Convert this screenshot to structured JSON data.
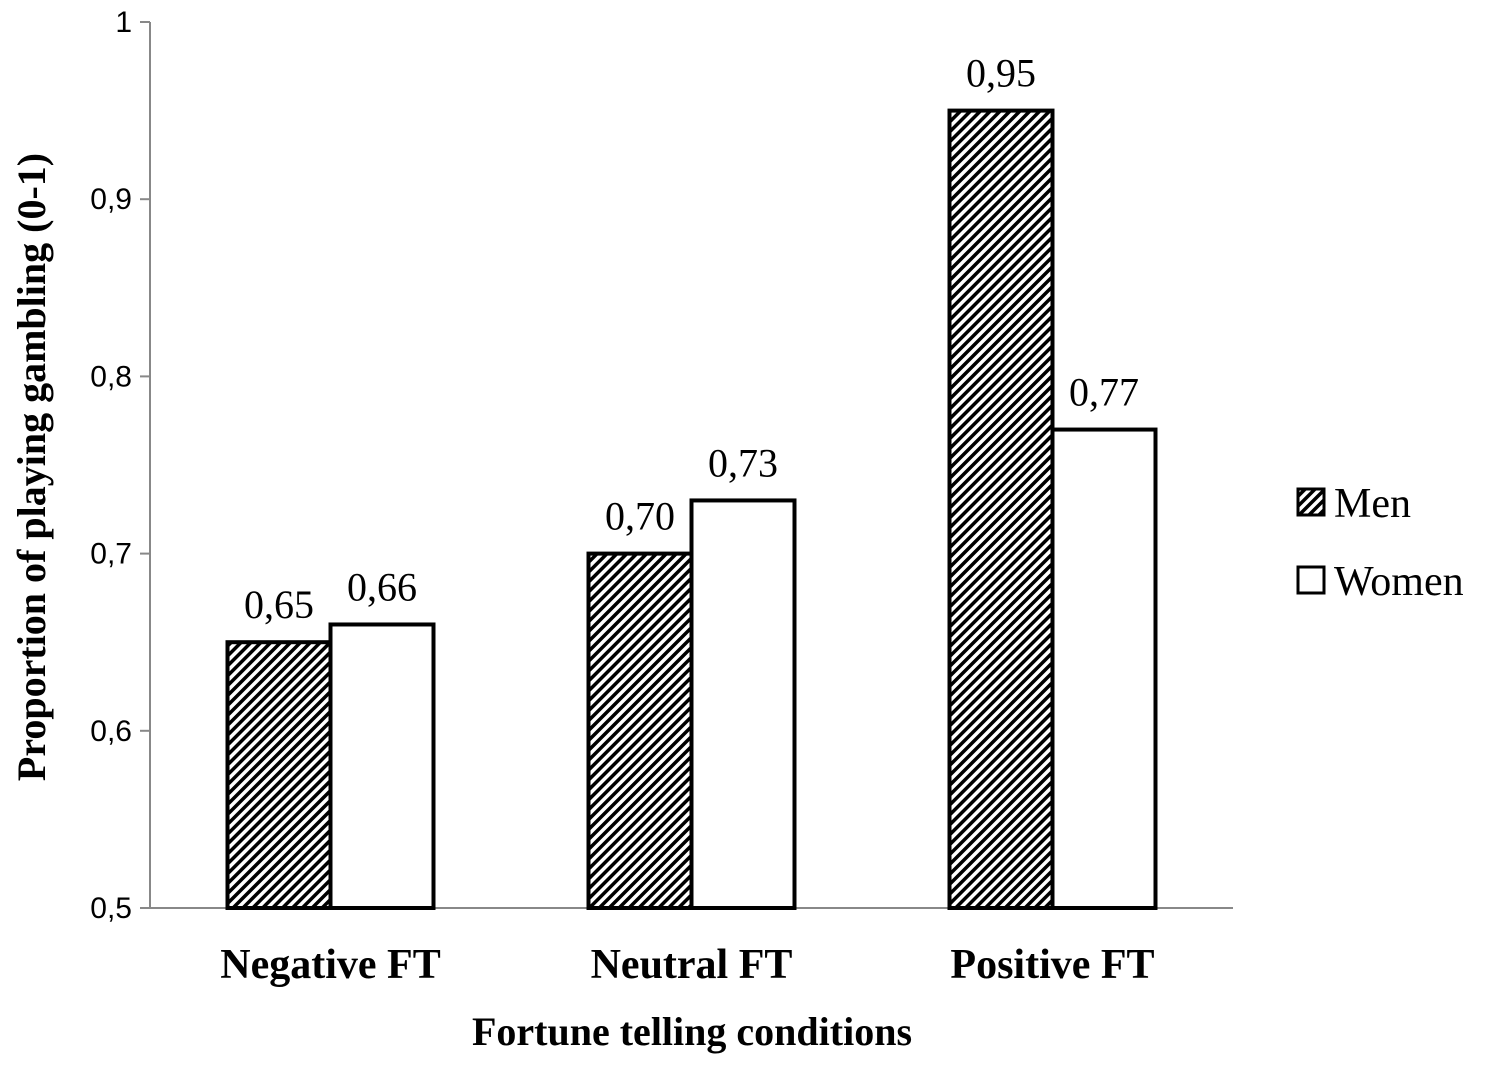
{
  "chart_data": {
    "type": "bar",
    "title": "",
    "categories": [
      "Negative FT",
      "Neutral FT",
      "Positive FT"
    ],
    "series": [
      {
        "name": "Men",
        "values": [
          0.65,
          0.7,
          0.95
        ],
        "labels": [
          "0,65",
          "0,70",
          "0,95"
        ],
        "fill": "hatched"
      },
      {
        "name": "Women",
        "values": [
          0.66,
          0.73,
          0.77
        ],
        "labels": [
          "0,66",
          "0,73",
          "0,77"
        ],
        "fill": "white"
      }
    ],
    "xlabel": "Fortune telling conditions",
    "ylabel": "Proportion of playing gambling (0-1)",
    "ylim": [
      0.5,
      1
    ],
    "yticks": [
      0.5,
      0.6,
      0.7,
      0.8,
      0.9,
      1
    ],
    "ytick_labels": [
      "0,5",
      "0,6",
      "0,7",
      "0,8",
      "0,9",
      "1"
    ],
    "legend": {
      "position": "right",
      "entries": [
        "Men",
        "Women"
      ]
    },
    "grid": false
  },
  "colors": {
    "stroke": "#000000",
    "hatch": "#000000",
    "background": "#ffffff",
    "axis": "#888888"
  }
}
